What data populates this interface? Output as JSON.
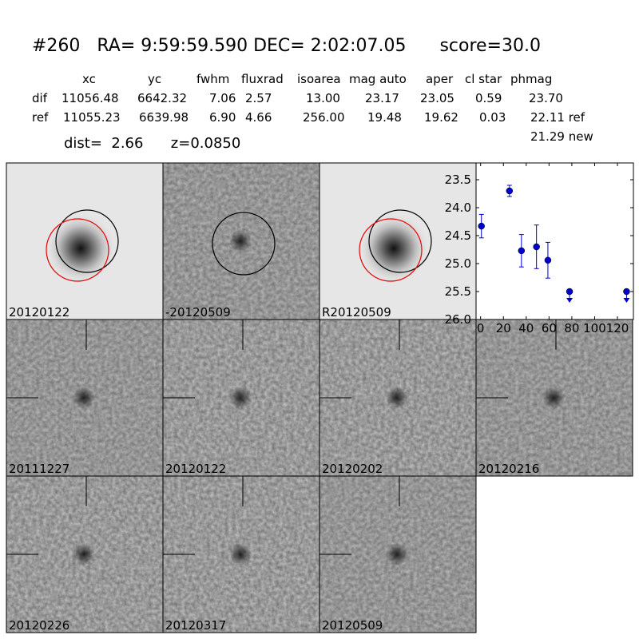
{
  "header": {
    "title": "#260   RA= 9:59:59.590 DEC= 2:02:07.05      score=30.0",
    "columns": [
      "xc",
      "yc",
      "fwhm",
      "fluxrad",
      "isoarea",
      "mag auto",
      "aper",
      "cl star",
      "phmag"
    ],
    "rows": [
      [
        "dif",
        "11056.48",
        "6642.32",
        "7.06",
        "2.57",
        "13.00",
        "23.17",
        "23.05",
        "0.59",
        "23.70"
      ],
      [
        "ref",
        "11055.23",
        "6639.98",
        "6.90",
        "4.66",
        "256.00",
        "19.48",
        "19.62",
        "0.03",
        "22.11 ref"
      ]
    ],
    "extra": "21.29 new",
    "dist": "dist=  2.66      z=0.0850"
  },
  "panels": {
    "top": [
      "20120122",
      "-20120509",
      "R20120509"
    ],
    "epochs": [
      "20111227",
      "20120122",
      "20120202",
      "20120216",
      "20120226",
      "20120317",
      "20120509"
    ],
    "highlight_color": "#ff0000",
    "highlight_index": 1
  },
  "chart_data": {
    "type": "errorbar",
    "x": [
      0.7,
      25.3,
      35.8,
      49,
      59,
      78,
      128
    ],
    "values": [
      24.33,
      23.7,
      24.77,
      24.7,
      24.94,
      25.5,
      25.5
    ],
    "errors": [
      0.21,
      0.1,
      0.29,
      0.39,
      0.32,
      null,
      null
    ],
    "upper_limit": [
      false,
      false,
      false,
      false,
      false,
      true,
      true
    ],
    "color": "#0000cc",
    "xlim": [
      -4,
      134
    ],
    "xticks": [
      0,
      20,
      40,
      60,
      80,
      100,
      120
    ],
    "ylim": [
      26.0,
      23.2
    ],
    "yticks": [
      23.5,
      {
        "value": 24,
        "label": "24.0"
      },
      24.5,
      {
        "value": 25,
        "label": "25.0"
      },
      25.5,
      {
        "value": 26,
        "label": "26.0"
      }
    ]
  }
}
